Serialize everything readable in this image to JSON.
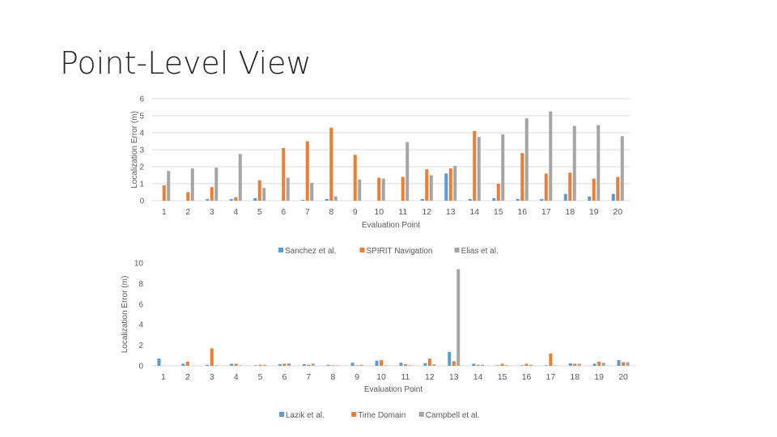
{
  "slide": {
    "title": "Point-Level View"
  },
  "chart_data": [
    {
      "type": "bar",
      "xlabel": "Evaluation Point",
      "ylabel": "Localization Error (m)",
      "ylim": [
        0,
        6
      ],
      "yticks": [
        0,
        1,
        2,
        3,
        4,
        5,
        6
      ],
      "grid": true,
      "legend_position": "bottom",
      "categories": [
        "1",
        "2",
        "3",
        "4",
        "5",
        "6",
        "7",
        "8",
        "9",
        "10",
        "11",
        "12",
        "13",
        "14",
        "15",
        "16",
        "17",
        "18",
        "19",
        "20"
      ],
      "series": [
        {
          "name": "Sanchez et al.",
          "color": "#5B9BD5",
          "values": [
            0,
            0,
            0.1,
            0.1,
            0.15,
            0,
            0.05,
            0.1,
            0,
            0,
            0,
            0.1,
            1.6,
            0.1,
            0.15,
            0.1,
            0.1,
            0.4,
            0.25,
            0.4
          ]
        },
        {
          "name": "SPIRIT Navigation",
          "color": "#ED7D31",
          "values": [
            0.9,
            0.5,
            0.8,
            0.2,
            1.2,
            3.1,
            3.5,
            4.3,
            2.7,
            1.35,
            1.4,
            1.85,
            1.9,
            4.1,
            1.0,
            2.8,
            1.6,
            1.65,
            1.3,
            1.4
          ]
        },
        {
          "name": "Elias et al.",
          "color": "#A5A5A5",
          "values": [
            1.75,
            1.9,
            1.95,
            2.75,
            0.75,
            1.35,
            1.05,
            0.25,
            1.25,
            1.3,
            3.45,
            1.5,
            2.05,
            3.75,
            3.9,
            4.85,
            5.25,
            4.4,
            4.45,
            3.8
          ]
        }
      ]
    },
    {
      "type": "bar",
      "xlabel": "Evaluation Point",
      "ylabel": "Localization Error (m)",
      "ylim": [
        0,
        10
      ],
      "yticks": [
        0,
        2,
        4,
        6,
        8,
        10
      ],
      "grid": false,
      "legend_position": "bottom",
      "categories": [
        "1",
        "2",
        "3",
        "4",
        "5",
        "6",
        "7",
        "8",
        "9",
        "10",
        "11",
        "12",
        "13",
        "14",
        "15",
        "16",
        "17",
        "18",
        "19",
        "20"
      ],
      "series": [
        {
          "name": "Lazik et al.",
          "color": "#5B9BD5",
          "values": [
            0.7,
            0.2,
            0.1,
            0.2,
            0.05,
            0.15,
            0.15,
            0.1,
            0.3,
            0.5,
            0.3,
            0.25,
            1.35,
            0.2,
            0.05,
            0.05,
            0.05,
            0.25,
            0.2,
            0.55
          ]
        },
        {
          "name": "Time Domain",
          "color": "#ED7D31",
          "values": [
            0,
            0.4,
            1.7,
            0.2,
            0.1,
            0.2,
            0.1,
            0.05,
            0.05,
            0.55,
            0.15,
            0.7,
            0.45,
            0.1,
            0.2,
            0.2,
            1.2,
            0.2,
            0.4,
            0.35
          ]
        },
        {
          "name": "Campbell et al.",
          "color": "#A5A5A5",
          "values": [
            0,
            0,
            0.05,
            0.05,
            0.1,
            0.25,
            0.2,
            0.05,
            0.1,
            0.05,
            0.05,
            0.15,
            9.4,
            0.1,
            0.05,
            0.1,
            0.05,
            0.2,
            0.3,
            0.35
          ]
        }
      ]
    }
  ]
}
